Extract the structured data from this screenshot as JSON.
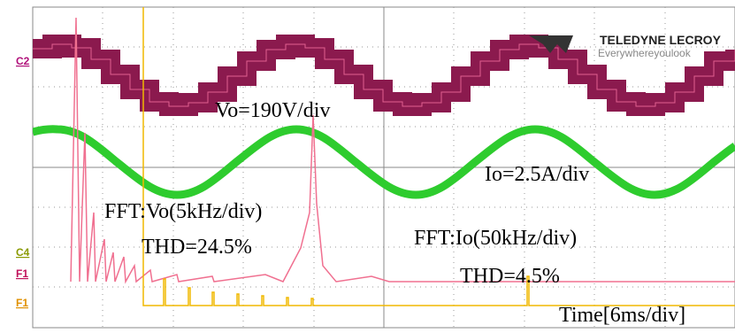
{
  "channel_labels": [
    "C2",
    "C4",
    "F1",
    "F1"
  ],
  "annotations": {
    "vo_scale": "Vo=190V/div",
    "io_scale": "Io=2.5A/div",
    "fft_vo": "FFT:Vo(5kHz/div)",
    "thd_vo": "THD=24.5%",
    "fft_io": "FFT:Io(50kHz/div)",
    "thd_io": "THD=4.5%",
    "time_scale": "Time[6ms/div]"
  },
  "logo": {
    "brand": "TELEDYNE LECROY",
    "tagline": "Everywhereyoulook"
  }
}
